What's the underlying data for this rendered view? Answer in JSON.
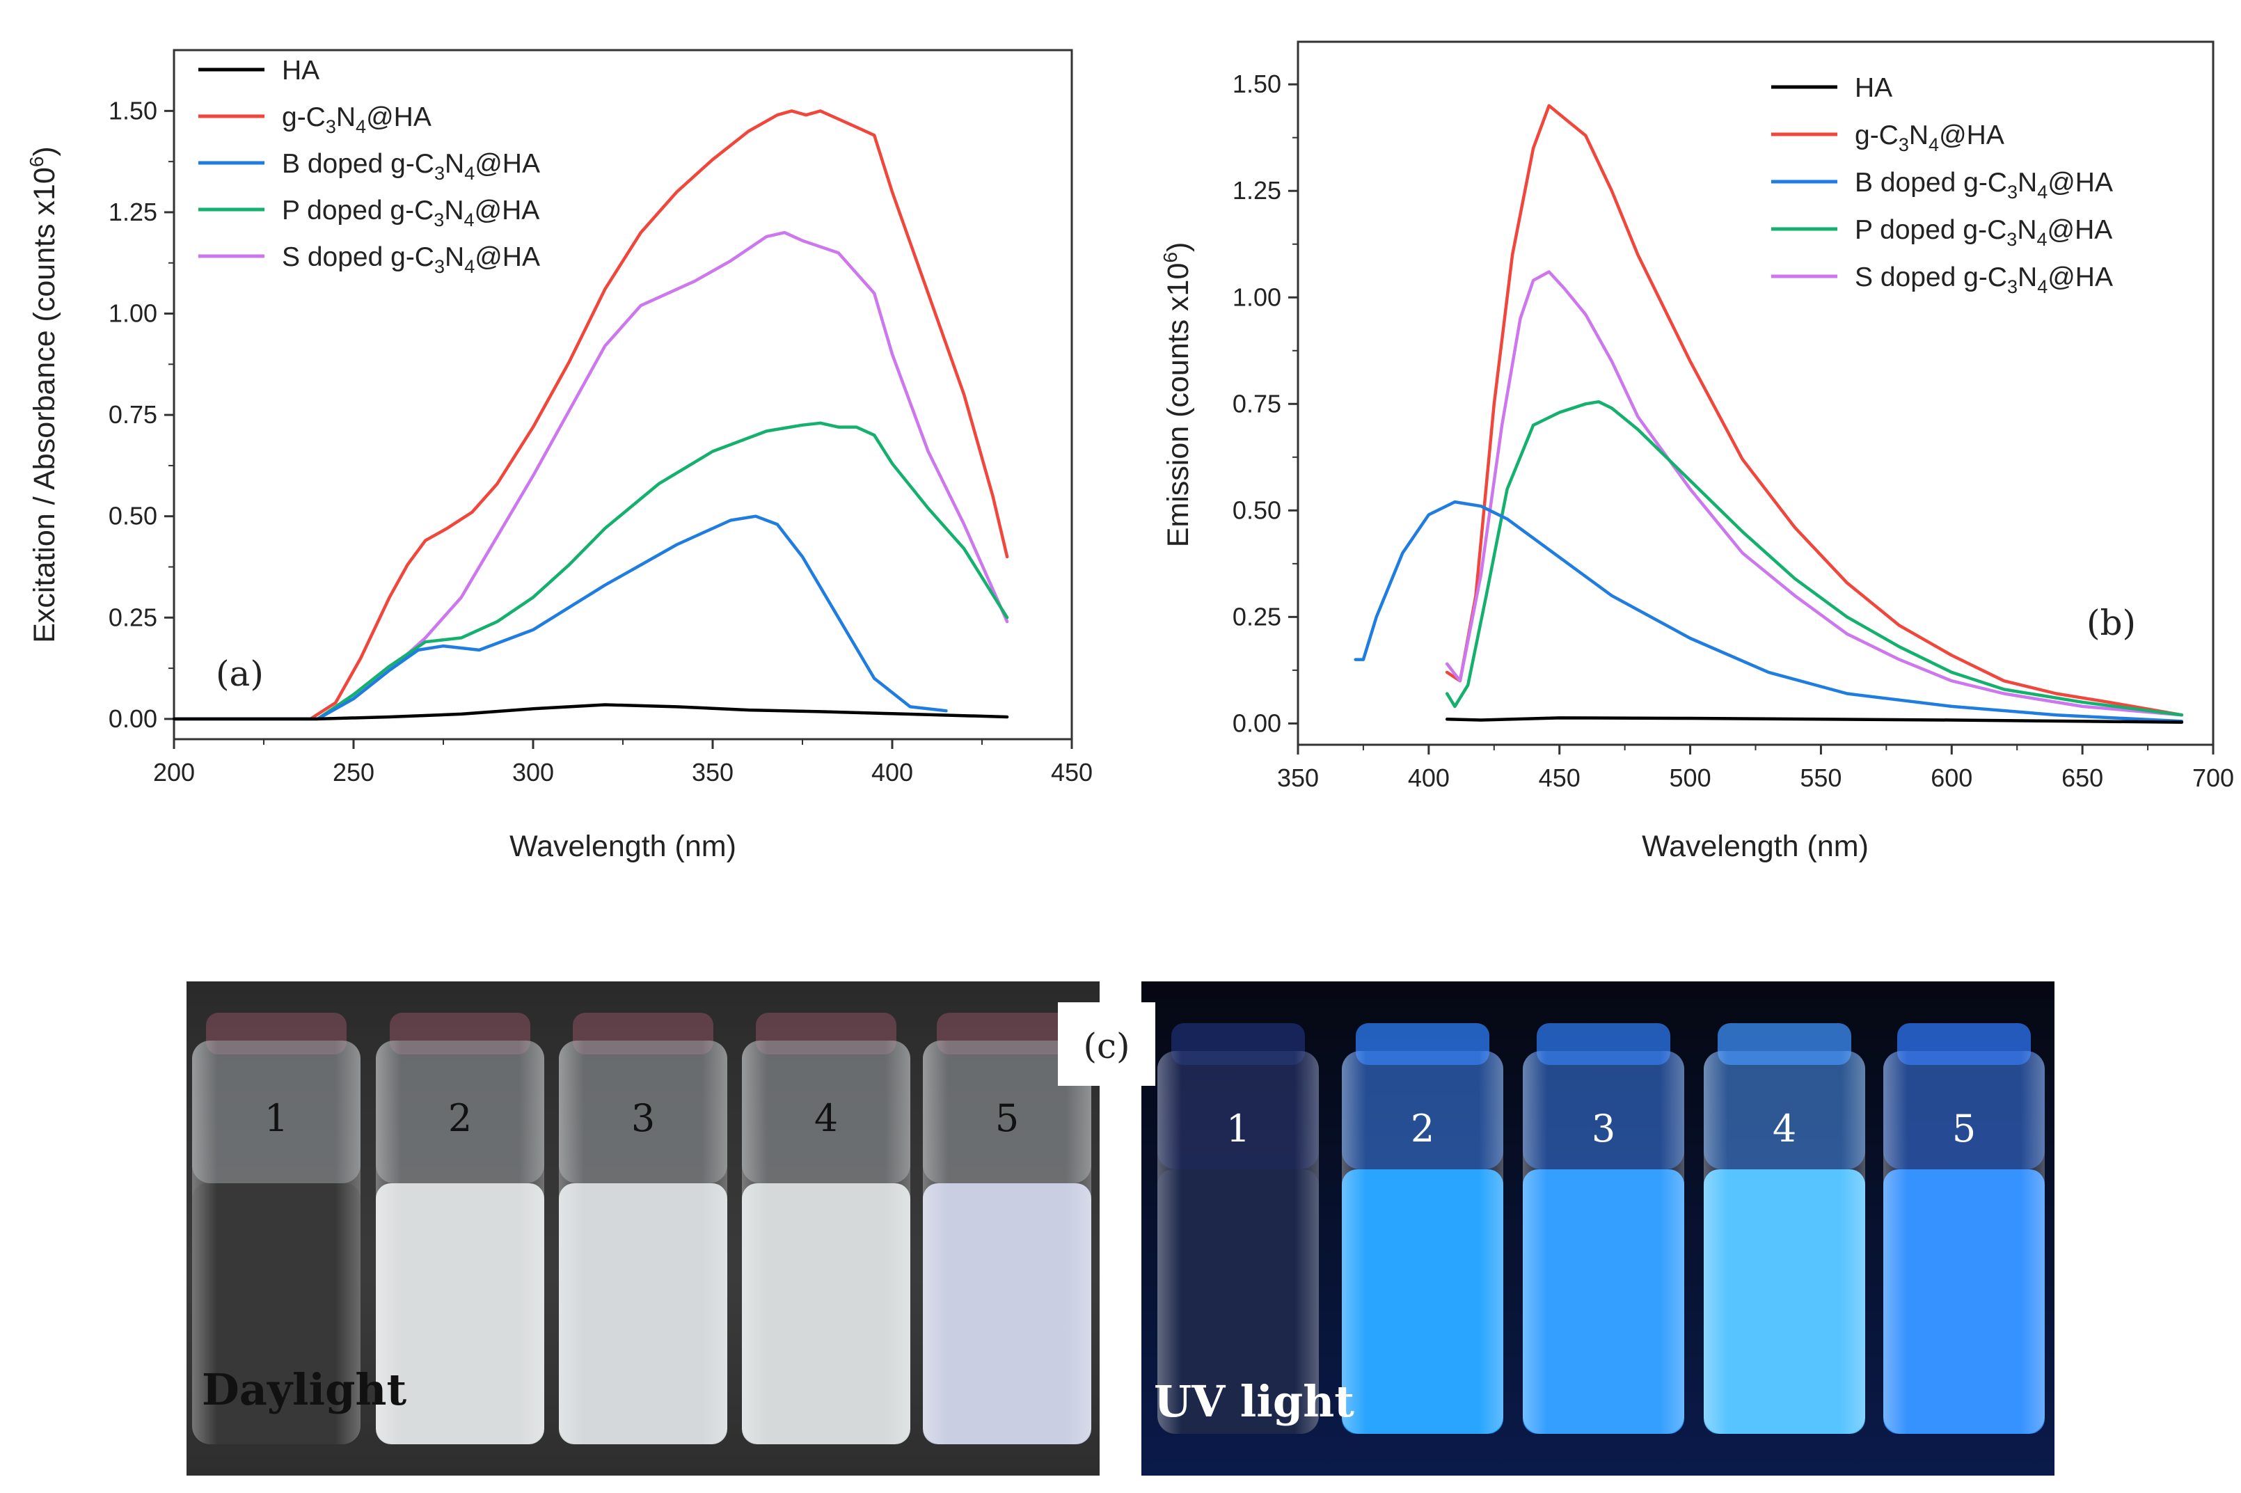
{
  "colors": {
    "HA": "#000000",
    "gC3N4": "#f0463c",
    "B": "#1f7de2",
    "P": "#14b06e",
    "S": "#cc77ee"
  },
  "legend_entries": [
    {
      "base": "HA",
      "series": "HA"
    },
    {
      "base": "g-C",
      "sub1": "3",
      "mid": "N",
      "sub2": "4",
      "tail": "@HA",
      "series": "gC3N4"
    },
    {
      "base": "B doped g-C",
      "sub1": "3",
      "mid": "N",
      "sub2": "4",
      "tail": "@HA",
      "series": "B"
    },
    {
      "base": "P doped g-C",
      "sub1": "3",
      "mid": "N",
      "sub2": "4",
      "tail": "@HA",
      "series": "P"
    },
    {
      "base": "S doped g-C",
      "sub1": "3",
      "mid": "N",
      "sub2": "4",
      "tail": "@HA",
      "series": "S"
    }
  ],
  "chart_data": [
    {
      "type": "line",
      "panel": "(a)",
      "xlabel": "Wavelength (nm)",
      "ylabel_main": "Excitation / Absorbance (counts x10",
      "ylabel_sup": "6",
      "ylabel_end": ")",
      "xlim": [
        200,
        450
      ],
      "ylim": [
        -0.05,
        1.65
      ],
      "xticks": [
        "200",
        "250",
        "300",
        "350",
        "400",
        "450"
      ],
      "yticks": [
        "0.00",
        "0.25",
        "0.50",
        "0.75",
        "1.00",
        "1.25",
        "1.50"
      ],
      "series": [
        {
          "name": "HA",
          "x": [
            200,
            240,
            260,
            280,
            300,
            320,
            340,
            360,
            380,
            400,
            420,
            432
          ],
          "y": [
            0,
            0,
            0.005,
            0.012,
            0.025,
            0.035,
            0.03,
            0.022,
            0.018,
            0.013,
            0.008,
            0.005
          ]
        },
        {
          "name": "g-C3N4@HA",
          "x": [
            200,
            238,
            245,
            252,
            260,
            265,
            270,
            276,
            283,
            290,
            300,
            310,
            320,
            330,
            340,
            350,
            360,
            368,
            372,
            376,
            380,
            385,
            390,
            395,
            400,
            410,
            420,
            428,
            432
          ],
          "y": [
            0,
            0,
            0.04,
            0.15,
            0.3,
            0.38,
            0.44,
            0.47,
            0.51,
            0.58,
            0.72,
            0.88,
            1.06,
            1.2,
            1.3,
            1.38,
            1.45,
            1.49,
            1.5,
            1.49,
            1.5,
            1.48,
            1.46,
            1.44,
            1.3,
            1.05,
            0.8,
            0.55,
            0.4
          ]
        },
        {
          "name": "B doped g-C3N4@HA",
          "x": [
            200,
            240,
            250,
            260,
            268,
            275,
            285,
            300,
            320,
            340,
            355,
            362,
            368,
            375,
            385,
            395,
            405,
            415
          ],
          "y": [
            0,
            0,
            0.05,
            0.12,
            0.17,
            0.18,
            0.17,
            0.22,
            0.33,
            0.43,
            0.49,
            0.5,
            0.48,
            0.4,
            0.25,
            0.1,
            0.03,
            0.02
          ]
        },
        {
          "name": "P doped g-C3N4@HA",
          "x": [
            200,
            240,
            250,
            260,
            270,
            280,
            290,
            300,
            310,
            320,
            335,
            350,
            365,
            375,
            380,
            385,
            390,
            395,
            400,
            410,
            420,
            432
          ],
          "y": [
            0,
            0,
            0.06,
            0.13,
            0.19,
            0.2,
            0.24,
            0.3,
            0.38,
            0.47,
            0.58,
            0.66,
            0.71,
            0.725,
            0.73,
            0.72,
            0.72,
            0.7,
            0.63,
            0.52,
            0.42,
            0.25
          ]
        },
        {
          "name": "S doped g-C3N4@HA",
          "x": [
            200,
            240,
            250,
            260,
            270,
            280,
            290,
            300,
            310,
            320,
            330,
            345,
            355,
            365,
            370,
            375,
            385,
            395,
            400,
            410,
            420,
            432
          ],
          "y": [
            0,
            0,
            0.05,
            0.12,
            0.2,
            0.3,
            0.45,
            0.6,
            0.76,
            0.92,
            1.02,
            1.08,
            1.13,
            1.19,
            1.2,
            1.18,
            1.15,
            1.05,
            0.9,
            0.66,
            0.48,
            0.24
          ]
        }
      ]
    },
    {
      "type": "line",
      "panel": "(b)",
      "xlabel": "Wavelength (nm)",
      "ylabel_main": "Emission (counts x10",
      "ylabel_sup": "6",
      "ylabel_end": ")",
      "xlim": [
        350,
        700
      ],
      "ylim": [
        -0.05,
        1.6
      ],
      "xticks": [
        "350",
        "400",
        "450",
        "500",
        "550",
        "600",
        "650",
        "700"
      ],
      "yticks": [
        "0.00",
        "0.25",
        "0.50",
        "0.75",
        "1.00",
        "1.25",
        "1.50"
      ],
      "series": [
        {
          "name": "HA",
          "x": [
            407,
            420,
            450,
            500,
            550,
            600,
            650,
            688
          ],
          "y": [
            0.01,
            0.008,
            0.013,
            0.012,
            0.01,
            0.008,
            0.005,
            0.003
          ]
        },
        {
          "name": "g-C3N4@HA",
          "x": [
            407,
            412,
            418,
            425,
            432,
            440,
            446,
            452,
            460,
            470,
            480,
            500,
            520,
            540,
            560,
            580,
            600,
            620,
            640,
            660,
            688
          ],
          "y": [
            0.12,
            0.1,
            0.3,
            0.75,
            1.1,
            1.35,
            1.45,
            1.42,
            1.38,
            1.25,
            1.1,
            0.85,
            0.62,
            0.46,
            0.33,
            0.23,
            0.16,
            0.1,
            0.07,
            0.05,
            0.02
          ]
        },
        {
          "name": "B doped g-C3N4@HA",
          "x": [
            372,
            375,
            380,
            390,
            400,
            410,
            420,
            430,
            450,
            470,
            500,
            530,
            560,
            600,
            640,
            688
          ],
          "y": [
            0.15,
            0.15,
            0.25,
            0.4,
            0.49,
            0.52,
            0.51,
            0.48,
            0.39,
            0.3,
            0.2,
            0.12,
            0.07,
            0.04,
            0.02,
            0.005
          ]
        },
        {
          "name": "P doped g-C3N4@HA",
          "x": [
            407,
            410,
            415,
            422,
            430,
            440,
            450,
            460,
            465,
            470,
            480,
            500,
            520,
            540,
            560,
            580,
            600,
            620,
            650,
            688
          ],
          "y": [
            0.07,
            0.04,
            0.09,
            0.3,
            0.55,
            0.7,
            0.73,
            0.75,
            0.755,
            0.74,
            0.69,
            0.57,
            0.45,
            0.34,
            0.25,
            0.18,
            0.12,
            0.08,
            0.05,
            0.02
          ]
        },
        {
          "name": "S doped g-C3N4@HA",
          "x": [
            407,
            412,
            420,
            428,
            435,
            440,
            446,
            452,
            460,
            470,
            480,
            500,
            520,
            540,
            560,
            580,
            600,
            620,
            650,
            688
          ],
          "y": [
            0.14,
            0.1,
            0.35,
            0.7,
            0.95,
            1.04,
            1.06,
            1.02,
            0.96,
            0.85,
            0.72,
            0.55,
            0.4,
            0.3,
            0.21,
            0.15,
            0.1,
            0.07,
            0.04,
            0.02
          ]
        }
      ]
    }
  ],
  "photo": {
    "tag": "(c)",
    "daylight_label": "Daylight",
    "uv_label": "UV light",
    "vial_numbers": [
      "1",
      "2",
      "3",
      "4",
      "5"
    ]
  }
}
